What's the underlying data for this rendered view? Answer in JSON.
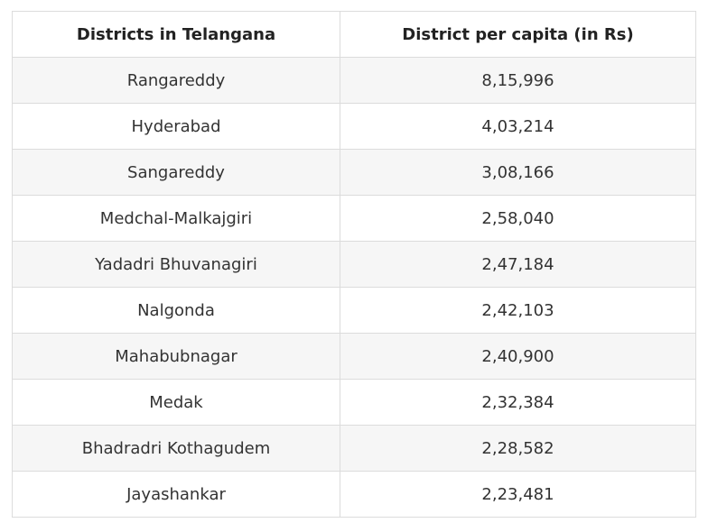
{
  "table": {
    "headers": [
      "Districts in Telangana",
      "District per capita (in Rs)"
    ],
    "rows": [
      [
        "Rangareddy",
        "8,15,996"
      ],
      [
        "Hyderabad",
        "4,03,214"
      ],
      [
        "Sangareddy",
        "3,08,166"
      ],
      [
        "Medchal-Malkajgiri",
        "2,58,040"
      ],
      [
        "Yadadri Bhuvanagiri",
        "2,47,184"
      ],
      [
        "Nalgonda",
        "2,42,103"
      ],
      [
        "Mahabubnagar",
        "2,40,900"
      ],
      [
        "Medak",
        "2,32,384"
      ],
      [
        "Bhadradri Kothagudem",
        "2,28,582"
      ],
      [
        "Jayashankar",
        "2,23,481"
      ]
    ]
  }
}
